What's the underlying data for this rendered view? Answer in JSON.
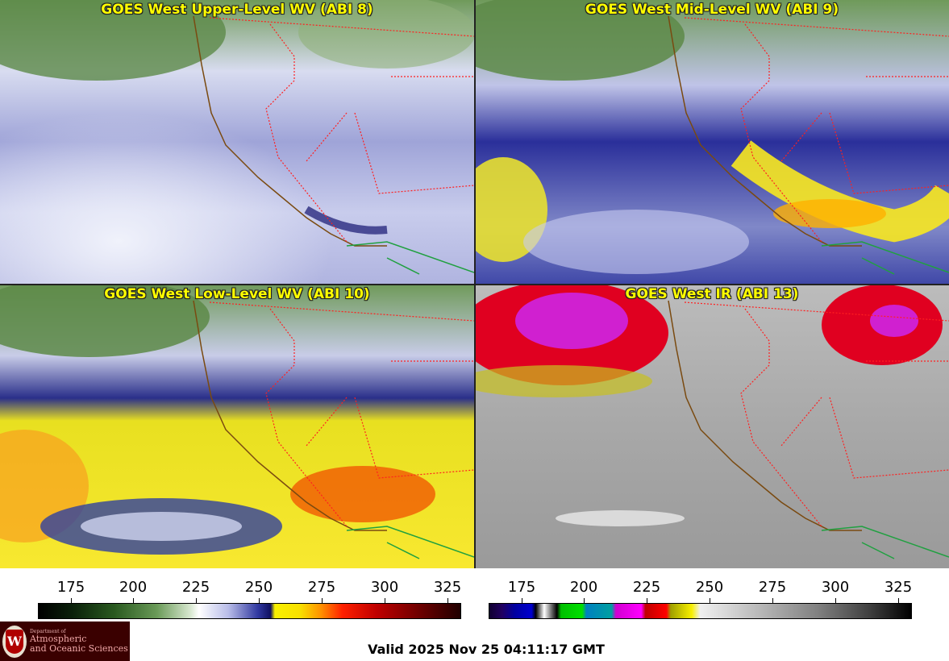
{
  "panels": [
    {
      "title": "GOES West Upper-Level WV (ABI 8)"
    },
    {
      "title": "GOES West Mid-Level WV (ABI 9)"
    },
    {
      "title": "GOES West Low-Level WV (ABI 10)"
    },
    {
      "title": "GOES West IR (ABI 13)"
    }
  ],
  "colorbars": {
    "wv": {
      "ticks": [
        "175",
        "200",
        "225",
        "250",
        "275",
        "300",
        "325"
      ]
    },
    "ir": {
      "ticks": [
        "175",
        "200",
        "225",
        "250",
        "275",
        "300",
        "325"
      ]
    }
  },
  "footer": {
    "valid_time": "Valid 2025 Nov 25 04:11:17 GMT",
    "logo_line1": "Department of",
    "logo_line2": "Atmospheric",
    "logo_line3": "and Oceanic Sciences",
    "logo_letter": "W"
  },
  "colors": {
    "title_text": "#ffff00",
    "state_borders": "#ff2020",
    "coastline": "#7a4a10",
    "mexico_coast": "#20a040"
  }
}
